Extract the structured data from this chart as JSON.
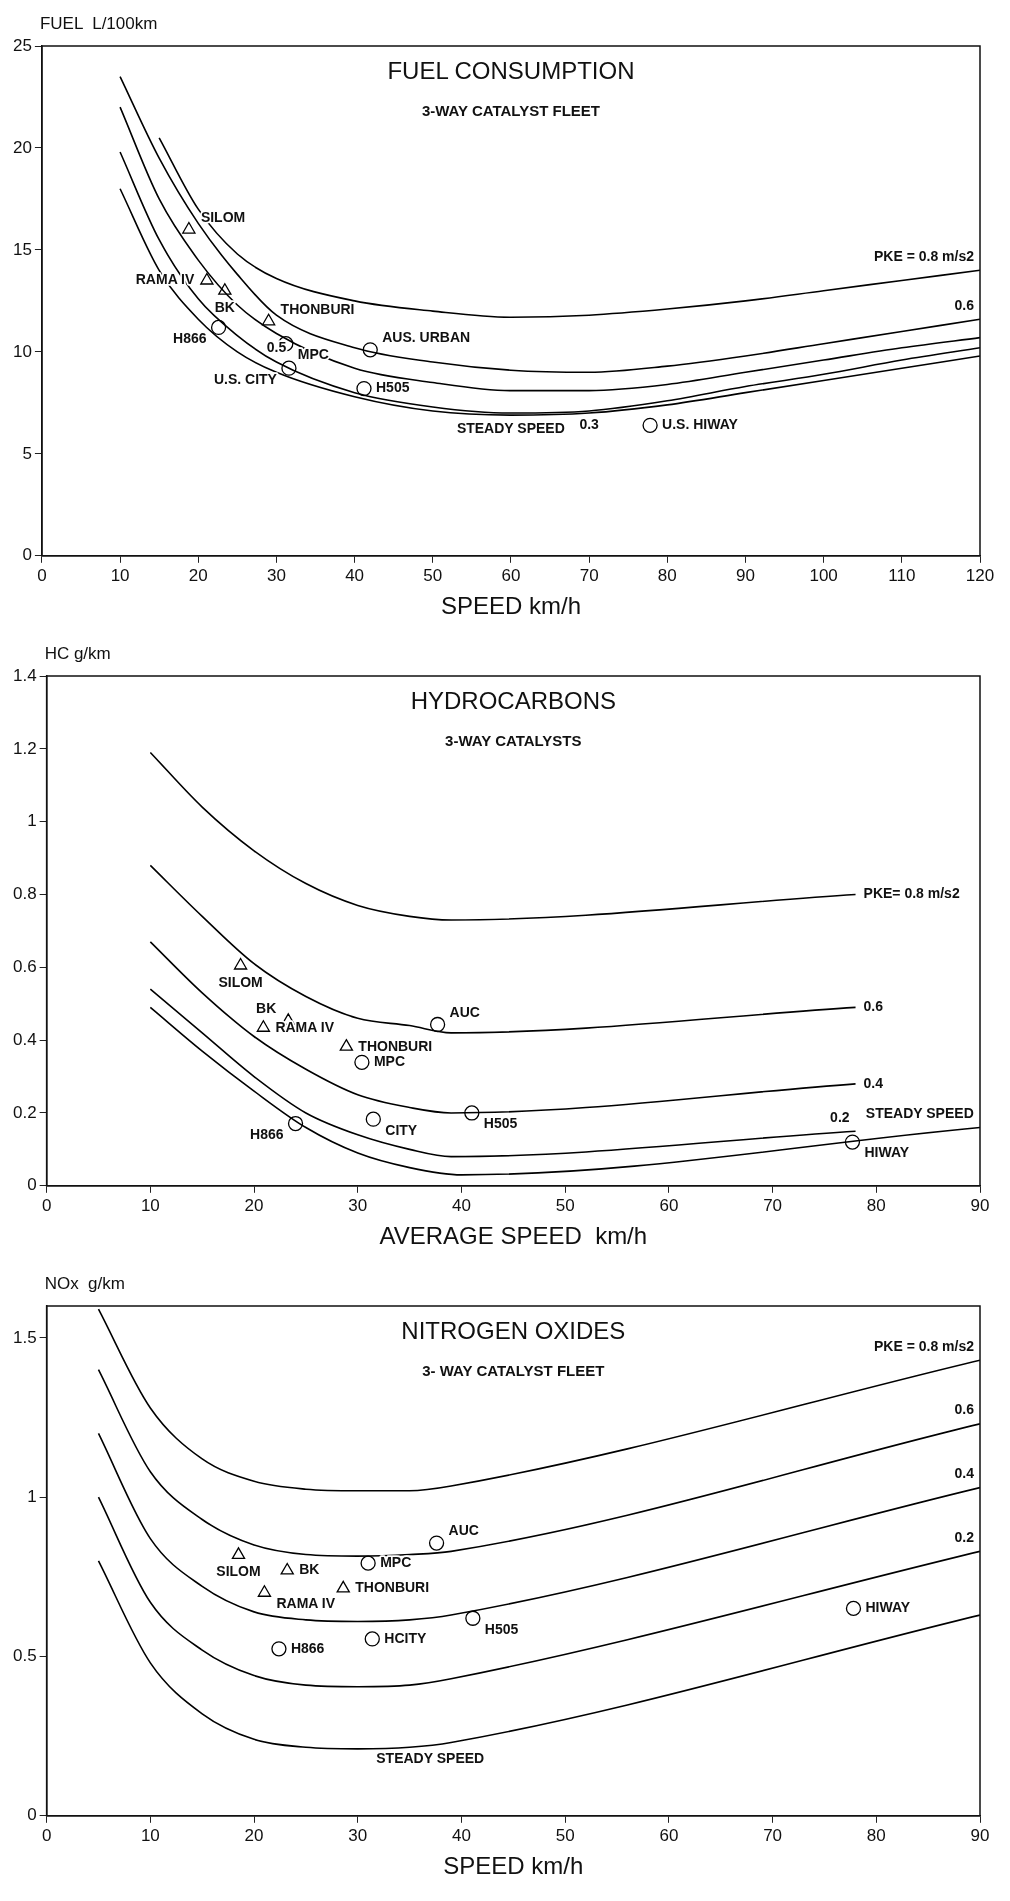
{
  "chart_data": [
    {
      "type": "line",
      "title": "FUEL CONSUMPTION",
      "subtitle": "3-WAY CATALYST FLEET",
      "xlabel": "SPEED km/h",
      "ylabel": "FUEL  L/100km",
      "xlim": [
        0,
        120
      ],
      "ylim": [
        0,
        25
      ],
      "xticks": [
        0,
        10,
        20,
        30,
        40,
        50,
        60,
        70,
        80,
        90,
        100,
        110,
        120
      ],
      "yticks": [
        0,
        5,
        10,
        15,
        20,
        25
      ],
      "series": [
        {
          "type": "line",
          "name": "PKE = 0.8 m/s2",
          "color": "#000000",
          "x": [
            15,
            20,
            25,
            30,
            40,
            50,
            60,
            70,
            80,
            90,
            100,
            110,
            120
          ],
          "values": [
            20.5,
            17,
            14.8,
            13.6,
            12.5,
            12,
            11.7,
            11.8,
            12.1,
            12.5,
            13,
            13.5,
            14
          ]
        },
        {
          "type": "line",
          "name": "0.6",
          "color": "#000000",
          "x": [
            10,
            15,
            20,
            25,
            30,
            40,
            50,
            60,
            70,
            80,
            90,
            100,
            110,
            120
          ],
          "values": [
            23.5,
            19.5,
            16.3,
            13.8,
            11.8,
            10.2,
            9.5,
            9.1,
            9,
            9.3,
            9.8,
            10.4,
            11,
            11.6
          ]
        },
        {
          "type": "line",
          "name": "0.5",
          "color": "#000000",
          "x": [
            10,
            15,
            20,
            25,
            30,
            40,
            50,
            60,
            70,
            80,
            90,
            100,
            110,
            120
          ],
          "values": [
            22,
            17.5,
            14.5,
            12.3,
            10.9,
            9.2,
            8.5,
            8.1,
            8.1,
            8.4,
            9,
            9.6,
            10.2,
            10.7
          ]
        },
        {
          "type": "line",
          "name": "0.3",
          "color": "#000000",
          "x": [
            10,
            15,
            20,
            25,
            30,
            40,
            50,
            60,
            70,
            80,
            90,
            100,
            110,
            120
          ],
          "values": [
            19.8,
            15.5,
            12.6,
            10.8,
            9.5,
            8,
            7.3,
            7,
            7.1,
            7.6,
            8.3,
            8.9,
            9.6,
            10.2
          ]
        },
        {
          "type": "line",
          "name": "STEADY SPEED",
          "color": "#000000",
          "x": [
            10,
            15,
            20,
            25,
            30,
            40,
            50,
            60,
            70,
            80,
            90,
            100,
            110,
            120
          ],
          "values": [
            18,
            14,
            11.6,
            10,
            9,
            7.8,
            7.1,
            6.9,
            7,
            7.4,
            8,
            8.6,
            9.2,
            9.8
          ]
        },
        {
          "type": "scatter",
          "marker": "triangle",
          "color": "#000000",
          "x": [
            18.8,
            21.1,
            23.4,
            29
          ],
          "values": [
            16,
            13.5,
            13,
            11.5
          ],
          "value_labels": [
            "SILOM",
            "RAMA IV",
            "BK",
            "THONBURI"
          ]
        },
        {
          "type": "scatter",
          "marker": "circle",
          "color": "#000000",
          "x": [
            22.6,
            31.2,
            42,
            31.6,
            41.2,
            77.8
          ],
          "values": [
            11.2,
            10.4,
            10.1,
            9.2,
            8.2,
            6.4
          ],
          "value_labels": [
            "H866",
            "MPC",
            "AUS. URBAN",
            "U.S. CITY",
            "H505",
            "U.S. HIWAY"
          ]
        }
      ]
    },
    {
      "type": "line",
      "title": "HYDROCARBONS",
      "subtitle": "3-WAY CATALYSTS",
      "xlabel": "AVERAGE SPEED  km/h",
      "ylabel": "HC g/km",
      "xlim": [
        0,
        90
      ],
      "ylim": [
        0,
        1.4
      ],
      "xticks": [
        0,
        10,
        20,
        30,
        40,
        50,
        60,
        70,
        80,
        90
      ],
      "yticks": [
        0,
        0.2,
        0.4,
        0.6,
        0.8,
        1,
        1.2,
        1.4
      ],
      "series": [
        {
          "type": "line",
          "name": "PKE= 0.8 m/s2",
          "color": "#000000",
          "x": [
            10,
            15,
            20,
            25,
            30,
            35,
            39,
            78
          ],
          "values": [
            1.19,
            1.04,
            0.92,
            0.83,
            0.77,
            0.74,
            0.73,
            0.8
          ]
        },
        {
          "type": "line",
          "name": "0.6",
          "color": "#000000",
          "x": [
            10,
            15,
            20,
            25,
            30,
            35,
            39,
            78
          ],
          "values": [
            0.88,
            0.74,
            0.61,
            0.52,
            0.46,
            0.44,
            0.42,
            0.49
          ]
        },
        {
          "type": "line",
          "name": "0.4",
          "color": "#000000",
          "x": [
            10,
            15,
            20,
            25,
            30,
            35,
            39,
            78
          ],
          "values": [
            0.67,
            0.53,
            0.41,
            0.32,
            0.25,
            0.215,
            0.2,
            0.28
          ]
        },
        {
          "type": "line",
          "name": "0.2",
          "color": "#000000",
          "x": [
            10,
            15,
            20,
            25,
            30,
            35,
            39,
            78
          ],
          "values": [
            0.54,
            0.42,
            0.3,
            0.2,
            0.14,
            0.1,
            0.08,
            0.15
          ]
        },
        {
          "type": "line",
          "name": "STEADY SPEED",
          "color": "#000000",
          "x": [
            10,
            15,
            20,
            25,
            30,
            35,
            40,
            90
          ],
          "values": [
            0.49,
            0.37,
            0.26,
            0.16,
            0.09,
            0.05,
            0.03,
            0.16
          ]
        },
        {
          "type": "scatter",
          "marker": "triangle",
          "color": "#000000",
          "x": [
            18.7,
            20.9,
            23.3,
            28.9
          ],
          "values": [
            0.605,
            0.434,
            0.453,
            0.382
          ],
          "value_labels": [
            "SILOM",
            "RAMA IV",
            "BK",
            "THONBURI"
          ]
        },
        {
          "type": "scatter",
          "marker": "circle",
          "color": "#000000",
          "x": [
            30.4,
            24,
            31.5,
            37.7,
            41,
            77.7
          ],
          "values": [
            0.339,
            0.171,
            0.183,
            0.443,
            0.2,
            0.12
          ],
          "value_labels": [
            "MPC",
            "H866",
            "CITY",
            "AUC",
            "H505",
            "HIWAY"
          ]
        }
      ]
    },
    {
      "type": "line",
      "title": "NITROGEN OXIDES",
      "subtitle": "3- WAY CATALYST FLEET",
      "xlabel": "SPEED km/h",
      "ylabel": "NOx  g/km",
      "xlim": [
        0,
        90
      ],
      "ylim": [
        0,
        1.6
      ],
      "xticks": [
        0,
        10,
        20,
        30,
        40,
        50,
        60,
        70,
        80,
        90
      ],
      "yticks": [
        0,
        0.5,
        1,
        1.5
      ],
      "series": [
        {
          "type": "line",
          "name": "PKE = 0.8 m/s2",
          "color": "#000000",
          "x": [
            5,
            10,
            15,
            20,
            25,
            30,
            35,
            39,
            90
          ],
          "values": [
            1.59,
            1.28,
            1.12,
            1.05,
            1.025,
            1.02,
            1.02,
            1.035,
            1.43
          ]
        },
        {
          "type": "line",
          "name": "0.6",
          "color": "#000000",
          "x": [
            5,
            10,
            15,
            20,
            25,
            30,
            35,
            39,
            90
          ],
          "values": [
            1.4,
            1.08,
            0.93,
            0.85,
            0.82,
            0.815,
            0.82,
            0.83,
            1.23
          ]
        },
        {
          "type": "line",
          "name": "0.4",
          "color": "#000000",
          "x": [
            5,
            10,
            15,
            20,
            25,
            30,
            35,
            39,
            90
          ],
          "values": [
            1.2,
            0.87,
            0.72,
            0.64,
            0.615,
            0.61,
            0.615,
            0.63,
            1.03
          ]
        },
        {
          "type": "line",
          "name": "0.2",
          "color": "#000000",
          "x": [
            5,
            10,
            15,
            20,
            25,
            30,
            35,
            39,
            90
          ],
          "values": [
            1,
            0.67,
            0.52,
            0.44,
            0.41,
            0.405,
            0.41,
            0.43,
            0.83
          ]
        },
        {
          "type": "line",
          "name": "STEADY SPEED",
          "color": "#000000",
          "x": [
            5,
            10,
            15,
            20,
            25,
            30,
            35,
            39,
            90
          ],
          "values": [
            0.8,
            0.48,
            0.32,
            0.24,
            0.215,
            0.21,
            0.215,
            0.23,
            0.63
          ]
        },
        {
          "type": "scatter",
          "marker": "triangle",
          "color": "#000000",
          "x": [
            18.5,
            21,
            23.2,
            28.6
          ],
          "values": [
            0.819,
            0.7,
            0.77,
            0.714
          ],
          "value_labels": [
            "SILOM",
            "RAMA IV",
            "BK",
            "THONBURI"
          ]
        },
        {
          "type": "scatter",
          "marker": "circle",
          "color": "#000000",
          "x": [
            31,
            37.6,
            22.4,
            31.4,
            41.1,
            77.8
          ],
          "values": [
            0.793,
            0.856,
            0.524,
            0.555,
            0.62,
            0.651
          ],
          "value_labels": [
            "MPC",
            "AUC",
            "H866",
            "HCITY",
            "H505",
            "HIWAY"
          ]
        }
      ]
    }
  ]
}
